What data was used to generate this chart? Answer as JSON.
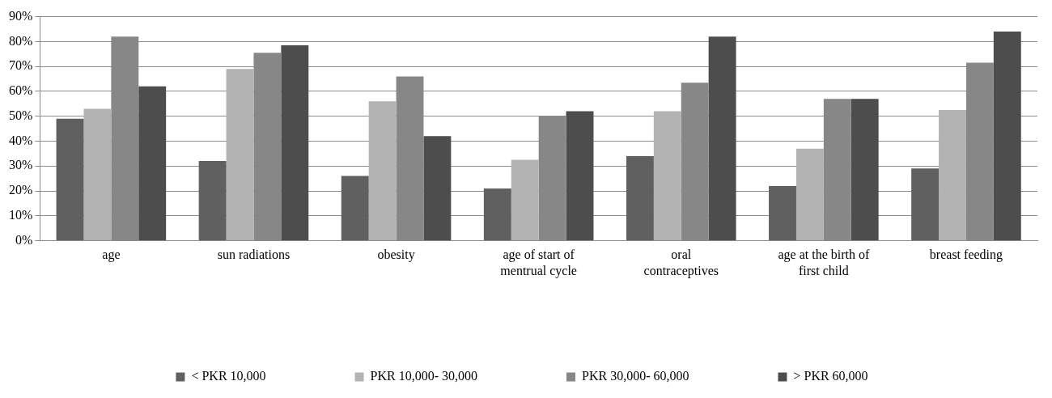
{
  "chart_data": {
    "type": "bar",
    "categories": [
      "age",
      "sun radiations",
      "obesity",
      "age of start of\nmentrual cycle",
      "oral\ncontraceptives",
      "age at the birth of\nfirst child",
      "breast feeding"
    ],
    "series": [
      {
        "name": "< PKR 10,000",
        "color": "#606060",
        "values": [
          49,
          32,
          26,
          21,
          34,
          22,
          29
        ]
      },
      {
        "name": "PKR 10,000- 30,000",
        "color": "#b3b3b3",
        "values": [
          53,
          69,
          56,
          32.5,
          52,
          37,
          52.5
        ]
      },
      {
        "name": "PKR 30,000- 60,000",
        "color": "#878787",
        "values": [
          82,
          75.5,
          66,
          50,
          63.5,
          57,
          71.5
        ]
      },
      {
        "name": "> PKR 60,000",
        "color": "#4d4d4d",
        "values": [
          62,
          78.5,
          42,
          52,
          82,
          57,
          84
        ]
      }
    ],
    "ylim": [
      0,
      90
    ],
    "yticks": [
      {
        "value": 0,
        "label": "0%"
      },
      {
        "value": 10,
        "label": "10%"
      },
      {
        "value": 20,
        "label": "20%"
      },
      {
        "value": 30,
        "label": "30%"
      },
      {
        "value": 40,
        "label": "40%"
      },
      {
        "value": 50,
        "label": "50%"
      },
      {
        "value": 60,
        "label": "60%"
      },
      {
        "value": 70,
        "label": "70%"
      },
      {
        "value": 80,
        "label": "80%"
      },
      {
        "value": 90,
        "label": "90%"
      }
    ],
    "grid": "y",
    "legend": "bottom"
  }
}
